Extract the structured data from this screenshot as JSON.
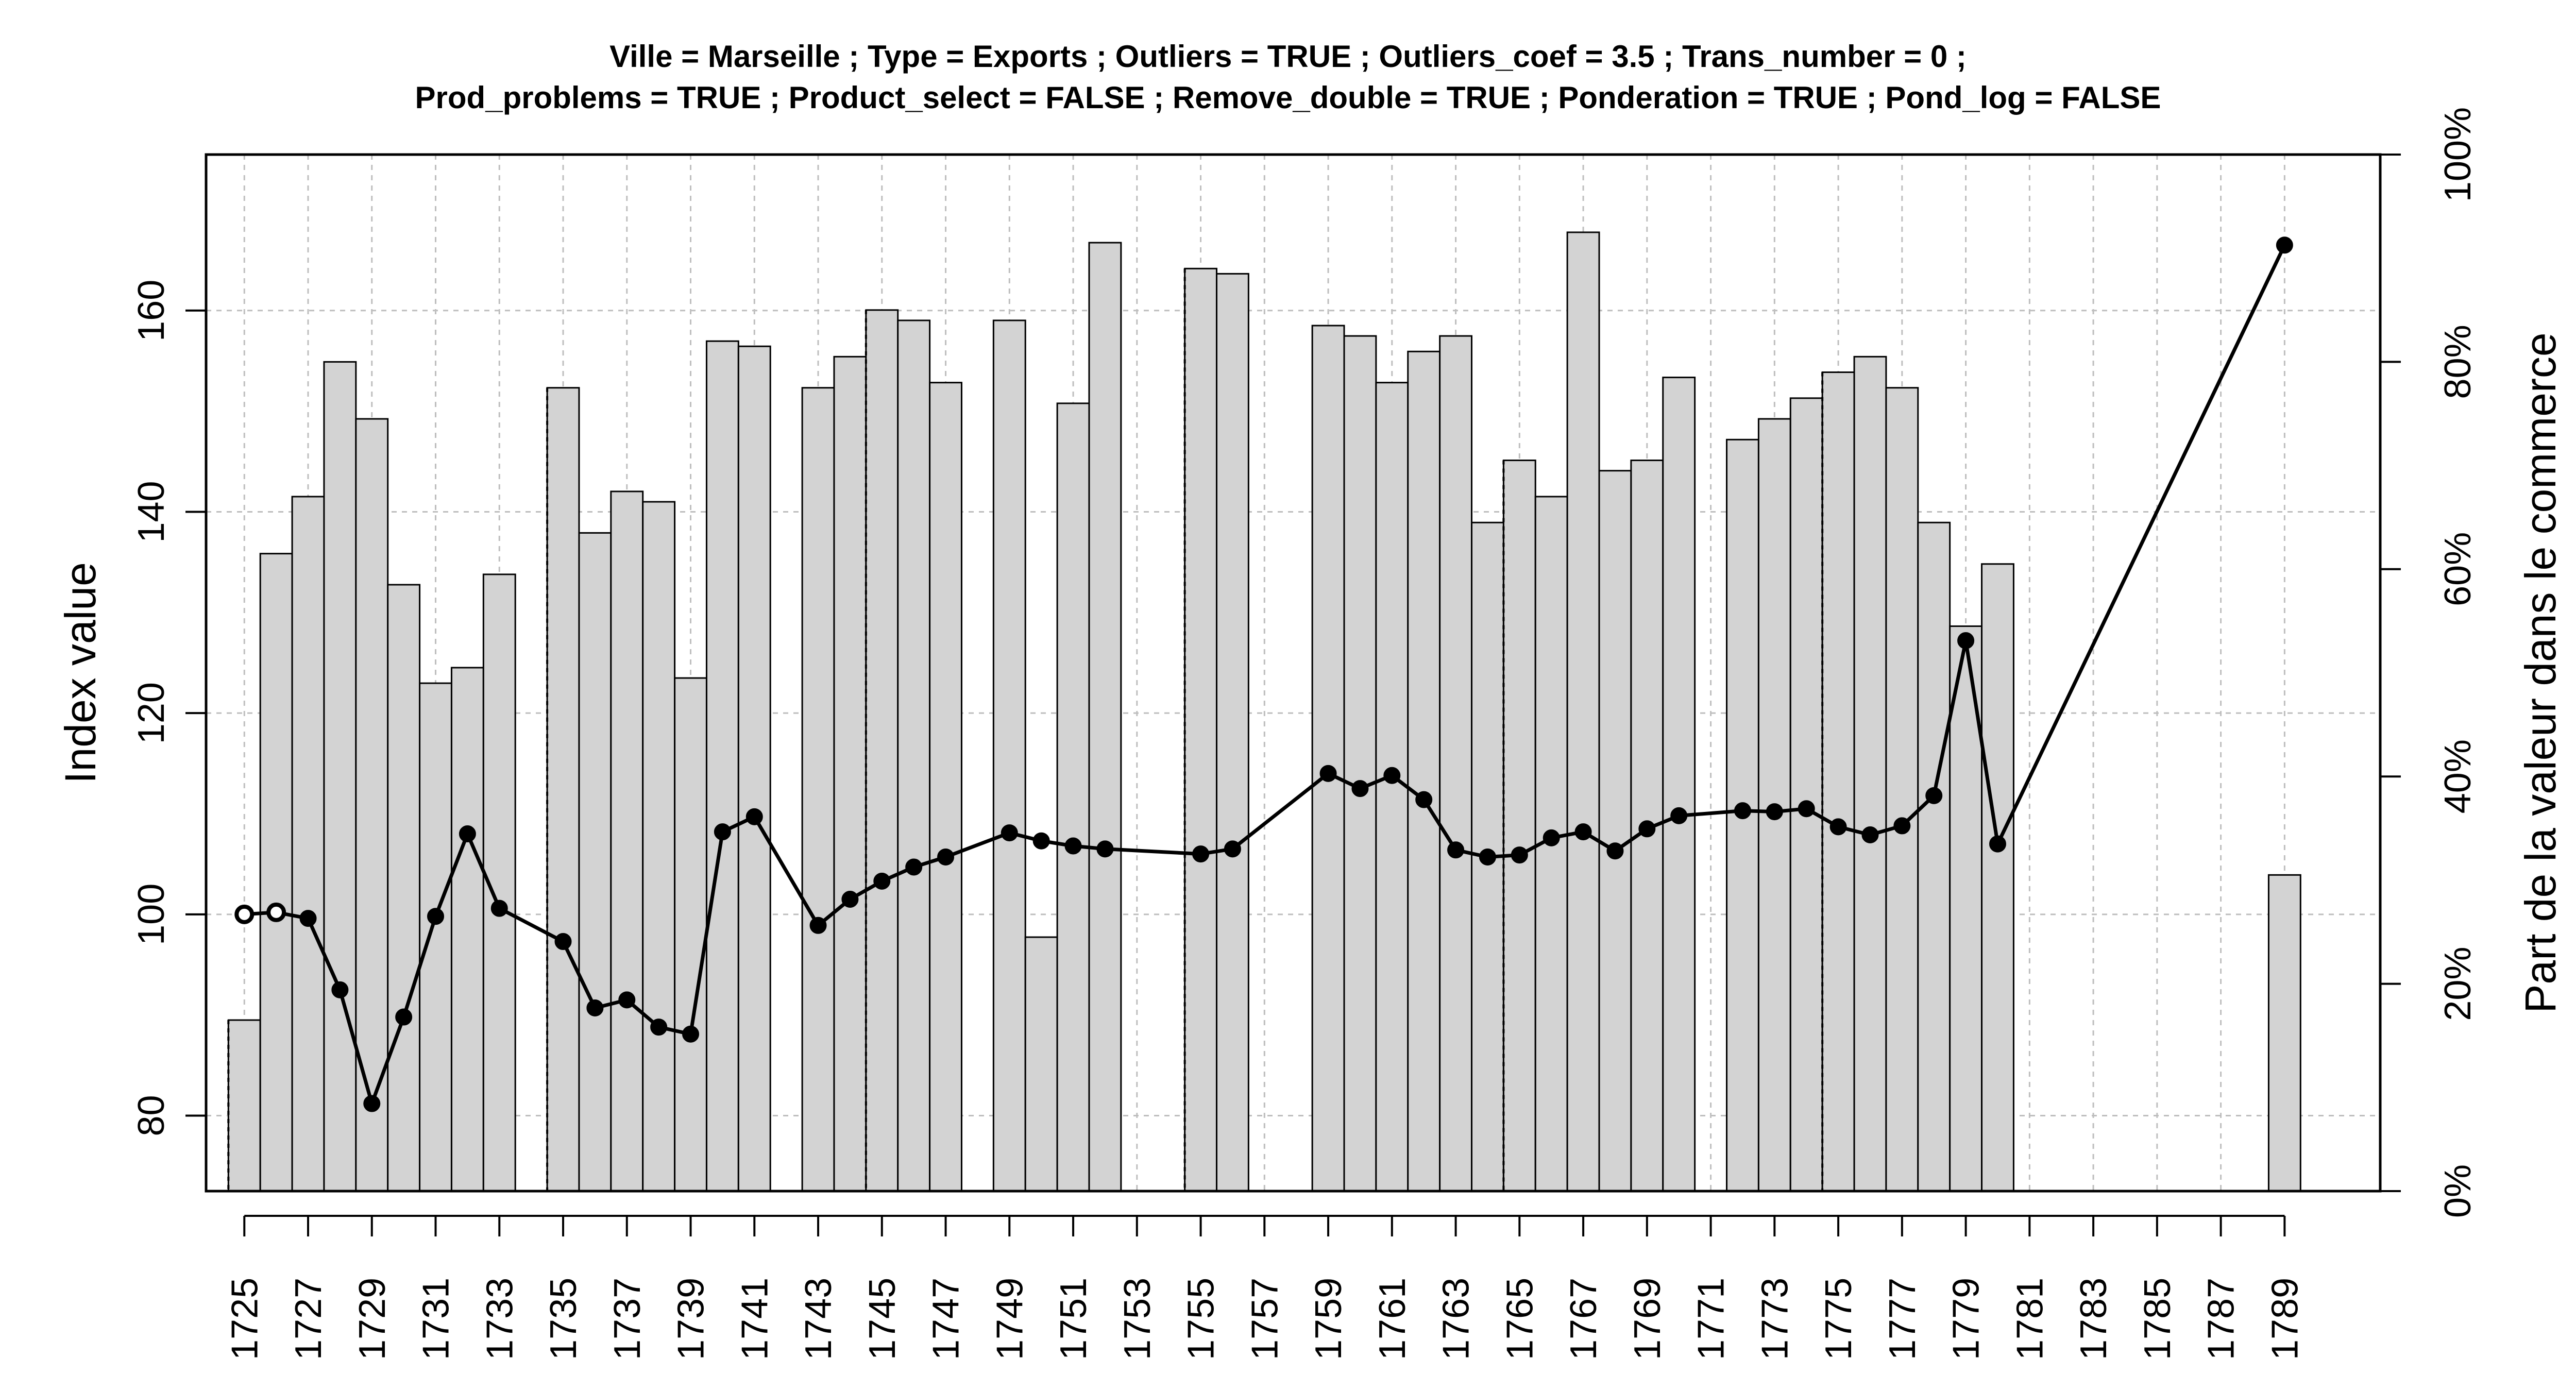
{
  "chart_data": {
    "type": "bar+line",
    "title_lines": [
      "Ville = Marseille ; Type = Exports ; Outliers = TRUE ; Outliers_coef = 3.5 ; Trans_number = 0 ;",
      "Prod_problems = TRUE ; Product_select = FALSE ; Remove_double = TRUE ; Ponderation = TRUE ; Pond_log = FALSE"
    ],
    "ylabel_left": "Index value",
    "ylabel_right": "Part de la valeur dans le commerce",
    "xlim": [
      1723.8,
      1792.0
    ],
    "ylim_left": [
      72.5,
      175.5
    ],
    "ylim_right_pct": [
      0,
      100
    ],
    "x_tick_labels": [
      "1725",
      "1727",
      "1729",
      "1731",
      "1733",
      "1735",
      "1737",
      "1739",
      "1741",
      "1743",
      "1745",
      "1747",
      "1749",
      "1751",
      "1753",
      "1755",
      "1757",
      "1759",
      "1761",
      "1763",
      "1765",
      "1767",
      "1769",
      "1771",
      "1773",
      "1775",
      "1777",
      "1779",
      "1781",
      "1783",
      "1785",
      "1787",
      "1789"
    ],
    "y_left_ticks": [
      "80",
      "100",
      "120",
      "140",
      "160"
    ],
    "y_right_ticks": [
      "0%",
      "20%",
      "40%",
      "60%",
      "80%",
      "100%"
    ],
    "grid": true,
    "bars_share_of_trade_pct": [
      {
        "year": 1725,
        "value": 16.5
      },
      {
        "year": 1726,
        "value": 61.5
      },
      {
        "year": 1727,
        "value": 67.0
      },
      {
        "year": 1728,
        "value": 80.0
      },
      {
        "year": 1729,
        "value": 74.5
      },
      {
        "year": 1730,
        "value": 58.5
      },
      {
        "year": 1731,
        "value": 49.0
      },
      {
        "year": 1732,
        "value": 50.5
      },
      {
        "year": 1733,
        "value": 59.5
      },
      {
        "year": 1735,
        "value": 77.5
      },
      {
        "year": 1736,
        "value": 63.5
      },
      {
        "year": 1737,
        "value": 67.5
      },
      {
        "year": 1738,
        "value": 66.5
      },
      {
        "year": 1739,
        "value": 49.5
      },
      {
        "year": 1740,
        "value": 82.0
      },
      {
        "year": 1741,
        "value": 81.5
      },
      {
        "year": 1743,
        "value": 77.5
      },
      {
        "year": 1744,
        "value": 80.5
      },
      {
        "year": 1745,
        "value": 85.0
      },
      {
        "year": 1746,
        "value": 84.0
      },
      {
        "year": 1747,
        "value": 78.0
      },
      {
        "year": 1749,
        "value": 84.0
      },
      {
        "year": 1750,
        "value": 24.5
      },
      {
        "year": 1751,
        "value": 76.0
      },
      {
        "year": 1752,
        "value": 91.5
      },
      {
        "year": 1755,
        "value": 89.0
      },
      {
        "year": 1756,
        "value": 88.5
      },
      {
        "year": 1759,
        "value": 83.5
      },
      {
        "year": 1760,
        "value": 82.5
      },
      {
        "year": 1761,
        "value": 78.0
      },
      {
        "year": 1762,
        "value": 81.0
      },
      {
        "year": 1763,
        "value": 82.5
      },
      {
        "year": 1764,
        "value": 64.5
      },
      {
        "year": 1765,
        "value": 70.5
      },
      {
        "year": 1766,
        "value": 67.0
      },
      {
        "year": 1767,
        "value": 92.5
      },
      {
        "year": 1768,
        "value": 69.5
      },
      {
        "year": 1769,
        "value": 70.5
      },
      {
        "year": 1770,
        "value": 78.5
      },
      {
        "year": 1772,
        "value": 72.5
      },
      {
        "year": 1773,
        "value": 74.5
      },
      {
        "year": 1774,
        "value": 76.5
      },
      {
        "year": 1775,
        "value": 79.0
      },
      {
        "year": 1776,
        "value": 80.5
      },
      {
        "year": 1777,
        "value": 77.5
      },
      {
        "year": 1778,
        "value": 64.5
      },
      {
        "year": 1779,
        "value": 54.5
      },
      {
        "year": 1780,
        "value": 60.5
      },
      {
        "year": 1789,
        "value": 30.5
      }
    ],
    "dotted_bar_edges": [
      1725,
      1735,
      1745,
      1755,
      1765,
      1775
    ],
    "index_series": [
      {
        "year": 1725,
        "value": 100.0,
        "open": true
      },
      {
        "year": 1726,
        "value": 100.2,
        "open": true
      },
      {
        "year": 1727,
        "value": 99.6
      },
      {
        "year": 1728,
        "value": 92.5
      },
      {
        "year": 1729,
        "value": 81.2
      },
      {
        "year": 1730,
        "value": 89.8
      },
      {
        "year": 1731,
        "value": 99.8
      },
      {
        "year": 1732,
        "value": 108.0
      },
      {
        "year": 1733,
        "value": 100.6
      },
      {
        "year": 1735,
        "value": 97.3
      },
      {
        "year": 1736,
        "value": 90.7
      },
      {
        "year": 1737,
        "value": 91.5
      },
      {
        "year": 1738,
        "value": 88.8
      },
      {
        "year": 1739,
        "value": 88.1
      },
      {
        "year": 1740,
        "value": 108.2
      },
      {
        "year": 1741,
        "value": 109.7
      },
      {
        "year": 1743,
        "value": 98.9
      },
      {
        "year": 1744,
        "value": 101.5
      },
      {
        "year": 1745,
        "value": 103.3
      },
      {
        "year": 1746,
        "value": 104.7
      },
      {
        "year": 1747,
        "value": 105.7
      },
      {
        "year": 1749,
        "value": 108.1
      },
      {
        "year": 1750,
        "value": 107.3
      },
      {
        "year": 1751,
        "value": 106.8
      },
      {
        "year": 1752,
        "value": 106.5
      },
      {
        "year": 1755,
        "value": 106.0
      },
      {
        "year": 1756,
        "value": 106.5
      },
      {
        "year": 1759,
        "value": 114.0
      },
      {
        "year": 1760,
        "value": 112.5
      },
      {
        "year": 1761,
        "value": 113.8
      },
      {
        "year": 1762,
        "value": 111.4
      },
      {
        "year": 1763,
        "value": 106.4
      },
      {
        "year": 1764,
        "value": 105.7
      },
      {
        "year": 1765,
        "value": 105.9
      },
      {
        "year": 1766,
        "value": 107.6
      },
      {
        "year": 1767,
        "value": 108.2
      },
      {
        "year": 1768,
        "value": 106.3
      },
      {
        "year": 1769,
        "value": 108.5
      },
      {
        "year": 1770,
        "value": 109.8
      },
      {
        "year": 1772,
        "value": 110.3
      },
      {
        "year": 1773,
        "value": 110.2
      },
      {
        "year": 1774,
        "value": 110.5
      },
      {
        "year": 1775,
        "value": 108.7
      },
      {
        "year": 1776,
        "value": 107.9
      },
      {
        "year": 1777,
        "value": 108.8
      },
      {
        "year": 1778,
        "value": 111.8
      },
      {
        "year": 1779,
        "value": 127.2
      },
      {
        "year": 1780,
        "value": 107.0
      },
      {
        "year": 1789,
        "value": 166.5
      }
    ],
    "colors": {
      "bar_fill": "#d3d3d3",
      "bar_stroke": "#000000",
      "line": "#000000",
      "grid": "#bebebe"
    }
  }
}
